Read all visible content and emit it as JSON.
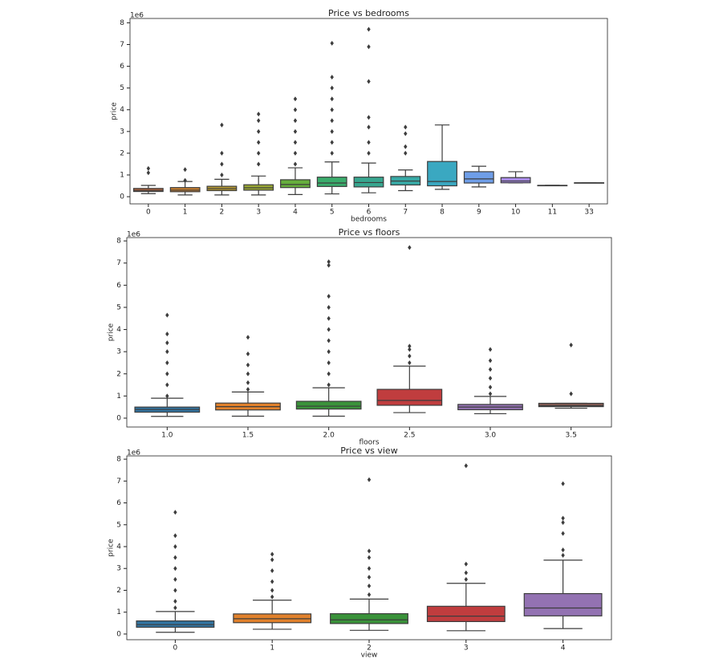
{
  "chart_data": [
    {
      "type": "box",
      "title": "Price vs bedrooms",
      "xlabel": "bedrooms",
      "ylabel": "price",
      "y_offset_label": "1e6",
      "categories": [
        "0",
        "1",
        "2",
        "3",
        "4",
        "5",
        "6",
        "7",
        "8",
        "9",
        "10",
        "11",
        "33"
      ],
      "colors": [
        "#b5653f",
        "#c9802e",
        "#b49832",
        "#98a634",
        "#66ae3d",
        "#3aac6c",
        "#37a68f",
        "#38a9a5",
        "#3aa8c1",
        "#6f9ee8",
        "#a98be7",
        "#d87ad5",
        "#e06c9e"
      ],
      "ylim": [
        -0.33,
        8.2
      ],
      "yticks": [
        0,
        1,
        2,
        3,
        4,
        5,
        6,
        7,
        8
      ],
      "boxes": [
        {
          "whislo": 0.14,
          "q1": 0.24,
          "med": 0.29,
          "q3": 0.38,
          "whishi": 0.52,
          "fliers": [
            1.1,
            1.3
          ]
        },
        {
          "whislo": 0.08,
          "q1": 0.23,
          "med": 0.3,
          "q3": 0.42,
          "whishi": 0.7,
          "fliers": [
            0.75,
            1.25
          ]
        },
        {
          "whislo": 0.08,
          "q1": 0.28,
          "med": 0.37,
          "q3": 0.48,
          "whishi": 0.8,
          "fliers": [
            1.0,
            1.5,
            2.0,
            3.3
          ]
        },
        {
          "whislo": 0.08,
          "q1": 0.3,
          "med": 0.41,
          "q3": 0.55,
          "whishi": 0.95,
          "fliers": [
            1.5,
            2.0,
            2.5,
            3.0,
            3.5,
            3.8
          ]
        },
        {
          "whislo": 0.1,
          "q1": 0.42,
          "med": 0.56,
          "q3": 0.78,
          "whishi": 1.33,
          "fliers": [
            1.5,
            2.0,
            2.5,
            3.0,
            3.5,
            4.0,
            4.5
          ]
        },
        {
          "whislo": 0.13,
          "q1": 0.47,
          "med": 0.63,
          "q3": 0.9,
          "whishi": 1.6,
          "fliers": [
            2.0,
            2.5,
            3.0,
            3.5,
            4.0,
            4.5,
            5.0,
            5.5,
            7.06
          ]
        },
        {
          "whislo": 0.18,
          "q1": 0.45,
          "med": 0.65,
          "q3": 0.9,
          "whishi": 1.55,
          "fliers": [
            2.0,
            2.5,
            3.2,
            3.65,
            5.3,
            6.9,
            7.7
          ]
        },
        {
          "whislo": 0.28,
          "q1": 0.54,
          "med": 0.72,
          "q3": 0.93,
          "whishi": 1.23,
          "fliers": [
            2.0,
            2.3,
            2.9,
            3.2
          ]
        },
        {
          "whislo": 0.34,
          "q1": 0.5,
          "med": 0.7,
          "q3": 1.62,
          "whishi": 3.3,
          "fliers": []
        },
        {
          "whislo": 0.45,
          "q1": 0.63,
          "med": 0.82,
          "q3": 1.15,
          "whishi": 1.4,
          "fliers": []
        },
        {
          "whislo": 0.64,
          "q1": 0.64,
          "med": 0.72,
          "q3": 0.88,
          "whishi": 1.15,
          "fliers": []
        },
        {
          "whislo": 0.52,
          "q1": 0.52,
          "med": 0.52,
          "q3": 0.52,
          "whishi": 0.52,
          "fliers": []
        },
        {
          "whislo": 0.64,
          "q1": 0.64,
          "med": 0.64,
          "q3": 0.64,
          "whishi": 0.64,
          "fliers": []
        }
      ]
    },
    {
      "type": "box",
      "title": "Price vs floors",
      "xlabel": "floors",
      "ylabel": "price",
      "y_offset_label": "1e6",
      "categories": [
        "1.0",
        "1.5",
        "2.0",
        "2.5",
        "3.0",
        "3.5"
      ],
      "colors": [
        "#3274a1",
        "#e1812c",
        "#3a923a",
        "#c03d3e",
        "#9372b2",
        "#845b53"
      ],
      "ylim": [
        -0.4,
        8.15
      ],
      "yticks": [
        0,
        1,
        2,
        3,
        4,
        5,
        6,
        7,
        8
      ],
      "boxes": [
        {
          "whislo": 0.08,
          "q1": 0.27,
          "med": 0.39,
          "q3": 0.5,
          "whishi": 0.9,
          "fliers": [
            1.0,
            1.5,
            2.0,
            2.5,
            3.0,
            3.4,
            3.8,
            4.65
          ]
        },
        {
          "whislo": 0.09,
          "q1": 0.37,
          "med": 0.52,
          "q3": 0.68,
          "whishi": 1.18,
          "fliers": [
            1.3,
            1.6,
            2.0,
            2.4,
            2.9,
            3.65
          ]
        },
        {
          "whislo": 0.09,
          "q1": 0.41,
          "med": 0.54,
          "q3": 0.76,
          "whishi": 1.37,
          "fliers": [
            1.5,
            2.0,
            2.5,
            3.0,
            3.5,
            4.0,
            4.5,
            5.0,
            5.5,
            6.9,
            7.06
          ]
        },
        {
          "whislo": 0.25,
          "q1": 0.58,
          "med": 0.8,
          "q3": 1.3,
          "whishi": 2.35,
          "fliers": [
            2.5,
            2.8,
            3.1,
            3.25,
            7.7
          ]
        },
        {
          "whislo": 0.2,
          "q1": 0.38,
          "med": 0.5,
          "q3": 0.62,
          "whishi": 0.98,
          "fliers": [
            1.1,
            1.4,
            1.8,
            2.2,
            2.6,
            3.1
          ]
        },
        {
          "whislo": 0.45,
          "q1": 0.52,
          "med": 0.56,
          "q3": 0.67,
          "whishi": 0.67,
          "fliers": [
            1.1,
            3.3
          ]
        }
      ]
    },
    {
      "type": "box",
      "title": "Price vs view",
      "xlabel": "view",
      "ylabel": "price",
      "y_offset_label": "1e6",
      "categories": [
        "0",
        "1",
        "2",
        "3",
        "4"
      ],
      "colors": [
        "#3274a1",
        "#e1812c",
        "#3a923a",
        "#c03d3e",
        "#9372b2"
      ],
      "ylim": [
        -0.26,
        8.15
      ],
      "yticks": [
        0,
        1,
        2,
        3,
        4,
        5,
        6,
        7,
        8
      ],
      "boxes": [
        {
          "whislo": 0.08,
          "q1": 0.31,
          "med": 0.43,
          "q3": 0.6,
          "whishi": 1.03,
          "fliers": [
            1.2,
            1.5,
            2.0,
            2.5,
            3.0,
            3.5,
            4.0,
            4.5,
            5.57
          ]
        },
        {
          "whislo": 0.22,
          "q1": 0.52,
          "med": 0.7,
          "q3": 0.92,
          "whishi": 1.55,
          "fliers": [
            1.7,
            2.0,
            2.4,
            2.9,
            3.4,
            3.65
          ]
        },
        {
          "whislo": 0.17,
          "q1": 0.48,
          "med": 0.65,
          "q3": 0.93,
          "whishi": 1.6,
          "fliers": [
            1.8,
            2.2,
            2.6,
            3.0,
            3.5,
            3.8,
            7.06
          ]
        },
        {
          "whislo": 0.15,
          "q1": 0.57,
          "med": 0.82,
          "q3": 1.27,
          "whishi": 2.32,
          "fliers": [
            2.5,
            2.8,
            3.2,
            7.7
          ]
        },
        {
          "whislo": 0.25,
          "q1": 0.83,
          "med": 1.19,
          "q3": 1.85,
          "whishi": 3.38,
          "fliers": [
            3.6,
            3.85,
            4.6,
            5.1,
            5.3,
            6.88
          ]
        }
      ]
    }
  ]
}
